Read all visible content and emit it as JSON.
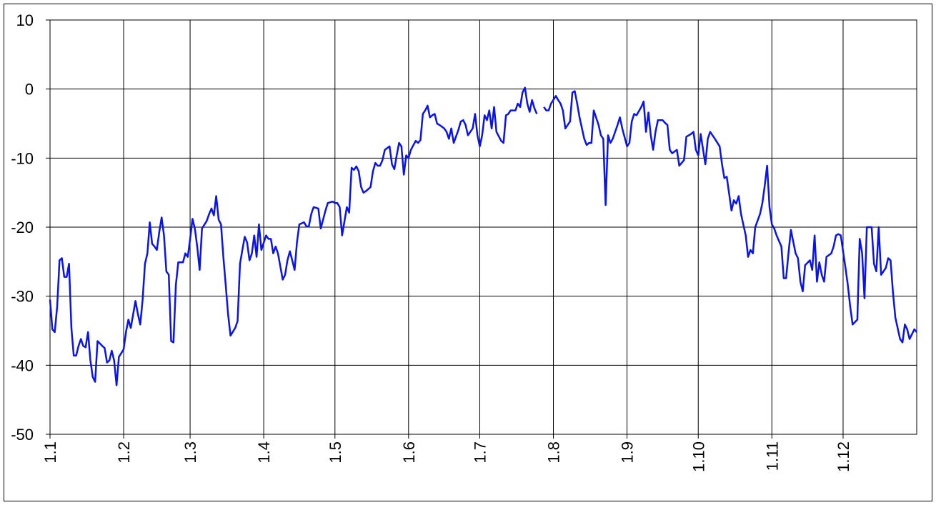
{
  "chart_data": {
    "type": "line",
    "color": "#0a14e6",
    "grid": true,
    "xlim": [
      0,
      365
    ],
    "ylim": [
      -50,
      10
    ],
    "yticks": [
      10,
      0,
      -10,
      -20,
      -30,
      -40,
      -50
    ],
    "xticks": [
      {
        "value": 0,
        "label": "1.1"
      },
      {
        "value": 31,
        "label": "1.2"
      },
      {
        "value": 59,
        "label": "1.3"
      },
      {
        "value": 90,
        "label": "1.4"
      },
      {
        "value": 120,
        "label": "1.5"
      },
      {
        "value": 151,
        "label": "1.6"
      },
      {
        "value": 181,
        "label": "1.7"
      },
      {
        "value": 212,
        "label": "1.8"
      },
      {
        "value": 243,
        "label": "1.9"
      },
      {
        "value": 273,
        "label": "1.10"
      },
      {
        "value": 304,
        "label": "1.11"
      },
      {
        "value": 334,
        "label": "1.12"
      }
    ],
    "x": [
      0,
      1,
      2,
      3,
      4,
      5,
      6,
      7,
      8,
      9,
      10,
      11,
      12,
      13,
      14,
      15,
      16,
      17,
      18,
      19,
      20,
      22,
      23,
      24,
      25,
      26,
      27,
      28,
      29,
      31,
      32,
      33,
      34,
      36,
      37,
      38,
      39,
      40,
      41,
      42,
      43,
      44,
      45,
      46,
      47,
      48,
      49,
      50,
      51,
      52,
      53,
      54,
      56,
      57,
      58,
      59,
      60,
      61,
      62,
      63,
      64,
      66,
      67,
      68,
      69,
      70,
      71,
      72,
      73,
      74,
      75,
      76,
      78,
      79,
      80,
      81,
      82,
      83,
      84,
      85,
      86,
      87,
      88,
      89,
      91,
      92,
      93,
      94,
      95,
      96,
      98,
      99,
      100,
      101,
      102,
      103,
      104,
      105,
      107,
      108,
      109,
      110,
      111,
      113,
      114,
      115,
      116,
      117,
      119,
      120,
      121,
      122,
      123,
      125,
      126,
      127,
      128,
      129,
      130,
      131,
      132,
      133,
      135,
      136,
      137,
      138,
      139,
      140,
      141,
      143,
      144,
      145,
      146,
      147,
      148,
      149,
      150,
      151,
      152,
      154,
      155,
      156,
      157,
      158,
      159,
      160,
      161,
      162,
      163,
      164,
      166,
      167,
      168,
      169,
      170,
      172,
      173,
      174,
      175,
      176,
      178,
      179,
      180,
      181,
      182,
      183,
      184,
      185,
      186,
      187,
      188,
      190,
      191,
      192,
      193,
      194,
      196,
      197,
      198,
      199,
      200,
      201,
      202,
      203,
      204,
      205,
      207,
      208,
      209,
      210,
      211,
      213,
      214,
      215,
      216,
      217,
      219,
      220,
      221,
      222,
      223,
      225,
      226,
      227,
      228,
      229,
      231,
      232,
      233,
      234,
      235,
      236,
      237,
      238,
      239,
      240,
      241,
      243,
      244,
      245,
      246,
      247,
      249,
      250,
      251,
      252,
      253,
      254,
      255,
      256,
      258,
      259,
      260,
      261,
      262,
      264,
      265,
      266,
      267,
      268,
      270,
      271,
      272,
      273,
      274,
      276,
      277,
      278,
      279,
      280,
      282,
      283,
      284,
      285,
      287,
      288,
      289,
      290,
      291,
      293,
      294,
      295,
      296,
      297,
      299,
      300,
      301,
      302,
      303,
      304,
      305,
      306,
      308,
      309,
      310,
      311,
      312,
      314,
      315,
      316,
      317,
      318,
      320,
      321,
      322,
      323,
      324,
      325,
      326,
      327,
      329,
      330,
      331,
      332,
      333,
      335,
      336,
      337,
      338,
      340,
      341,
      342,
      343,
      344,
      346,
      347,
      348,
      349,
      350,
      352,
      353,
      354,
      355,
      356,
      358,
      359,
      360,
      361,
      362,
      364,
      365
    ],
    "values": [
      -30.5,
      -34.8,
      -35.2,
      -31.5,
      -24.8,
      -24.5,
      -27.2,
      -27.2,
      -25.3,
      -34.6,
      -38.6,
      -38.6,
      -37.2,
      -36.2,
      -37.2,
      -37.4,
      -35.2,
      -39.3,
      -41.7,
      -42.4,
      -36.5,
      -37.2,
      -37.5,
      -39.6,
      -39.3,
      -37.9,
      -39.3,
      -42.9,
      -38.8,
      -37.7,
      -35.2,
      -33.4,
      -34.6,
      -30.7,
      -32.6,
      -34.1,
      -30.5,
      -25.3,
      -23.8,
      -19.3,
      -22.4,
      -22.8,
      -23.3,
      -20.7,
      -18.6,
      -21.2,
      -26.4,
      -26.9,
      -36.5,
      -36.7,
      -28.4,
      -25.1,
      -25.1,
      -23.8,
      -24.3,
      -21.7,
      -18.8,
      -20.2,
      -22.8,
      -26.2,
      -20.2,
      -19.1,
      -18.1,
      -17.3,
      -18.3,
      -15.5,
      -18.9,
      -19.6,
      -24.3,
      -28.4,
      -32.6,
      -35.7,
      -34.6,
      -33.6,
      -25.3,
      -23.3,
      -21.4,
      -22.2,
      -24.8,
      -23.8,
      -21.2,
      -24.3,
      -19.6,
      -23.3,
      -21.2,
      -21.7,
      -21.7,
      -23.8,
      -22.8,
      -23.8,
      -27.6,
      -26.9,
      -24.8,
      -23.5,
      -24.8,
      -26.2,
      -22.2,
      -19.6,
      -19.3,
      -19.9,
      -19.9,
      -18.1,
      -17.1,
      -17.3,
      -20.2,
      -18.9,
      -17.6,
      -16.5,
      -16.3,
      -16.5,
      -16.5,
      -17.1,
      -21.2,
      -17.1,
      -17.9,
      -11.4,
      -11.7,
      -11.2,
      -11.9,
      -14.2,
      -15.0,
      -14.8,
      -14.2,
      -11.9,
      -10.7,
      -11.1,
      -11.1,
      -10.3,
      -8.8,
      -8.3,
      -10.9,
      -11.6,
      -9.6,
      -7.8,
      -8.3,
      -12.4,
      -9.6,
      -10.0,
      -8.8,
      -7.5,
      -7.8,
      -7.4,
      -3.6,
      -3.1,
      -2.4,
      -4.1,
      -3.8,
      -3.6,
      -5.0,
      -5.2,
      -5.7,
      -6.2,
      -7.2,
      -5.7,
      -7.8,
      -5.9,
      -4.7,
      -4.5,
      -5.2,
      -6.7,
      -5.7,
      -3.6,
      -6.7,
      -8.3,
      -6.7,
      -3.8,
      -4.5,
      -3.1,
      -5.7,
      -2.6,
      -6.2,
      -7.5,
      -7.8,
      -3.8,
      -3.6,
      -3.1,
      -3.1,
      -2.1,
      -2.6,
      -0.5,
      0.2,
      -2.1,
      -3.3,
      -1.6,
      -2.8,
      -3.6,
      null,
      -2.6,
      -3.1,
      -3.1,
      -2.1,
      -1.0,
      -1.6,
      -2.1,
      -3.1,
      -5.7,
      -4.7,
      -0.5,
      -0.3,
      -2.1,
      -4.1,
      -7.2,
      -8.1,
      -7.8,
      -7.8,
      -3.1,
      -5.2,
      -6.7,
      -7.2,
      -16.8,
      -6.7,
      -7.8,
      -7.2,
      -6.2,
      -5.2,
      -4.1,
      -5.7,
      -8.3,
      -7.8,
      -4.7,
      -3.6,
      -3.8,
      -2.6,
      -1.8,
      -6.2,
      -3.4,
      -6.7,
      -8.8,
      -6.2,
      -4.5,
      -4.5,
      -4.9,
      -5.2,
      -8.8,
      -9.3,
      -8.8,
      -11.1,
      -10.7,
      -10.3,
      -6.9,
      -6.5,
      -6.2,
      -8.8,
      -9.6,
      -6.5,
      -10.9,
      -7.2,
      -6.2,
      -6.7,
      -7.2,
      -8.3,
      -10.9,
      -12.9,
      -12.7,
      -17.6,
      -16.1,
      -16.6,
      -15.5,
      -18.1,
      -21.2,
      -24.3,
      -23.3,
      -23.8,
      -20.0,
      -18.1,
      -16.5,
      -14.0,
      -11.1,
      -17.1,
      -19.6,
      -20.2,
      -21.2,
      -22.8,
      -27.4,
      -27.4,
      -23.8,
      -20.4,
      -23.8,
      -24.5,
      -27.9,
      -29.3,
      -25.5,
      -24.8,
      -26.2,
      -21.2,
      -27.9,
      -25.1,
      -26.9,
      -27.9,
      -24.3,
      -23.8,
      -22.8,
      -21.2,
      -21.0,
      -21.2,
      -25.9,
      -28.4,
      -31.5,
      -34.1,
      -33.4,
      -21.7,
      -23.8,
      -30.3,
      -20.0,
      -20.0,
      -25.3,
      -26.4,
      -20.0,
      -26.9,
      -25.9,
      -24.5,
      -24.8,
      -29.5,
      -33.1,
      -36.2,
      -36.7,
      -34.1,
      -34.8,
      -36.2,
      -34.8,
      -35.2
    ]
  }
}
